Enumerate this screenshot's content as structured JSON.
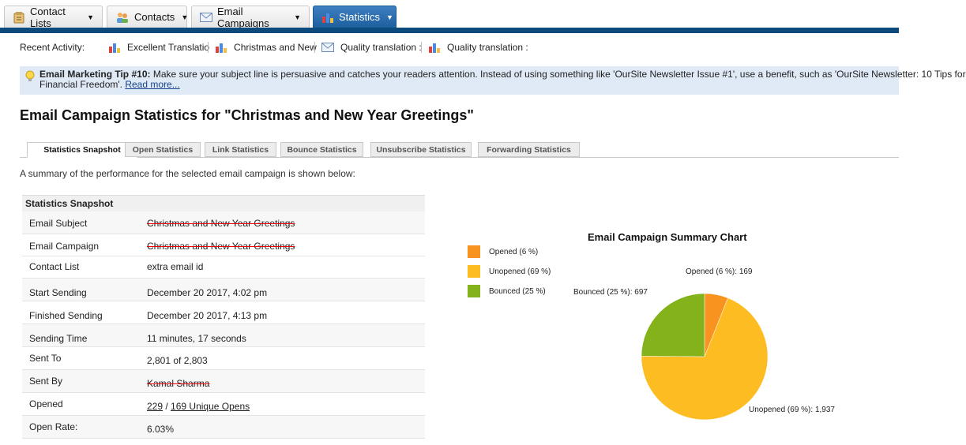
{
  "nav": {
    "tabs": [
      {
        "label": "Contact Lists",
        "icon": "contact-lists-icon"
      },
      {
        "label": "Contacts",
        "icon": "contacts-icon"
      },
      {
        "label": "Email Campaigns",
        "icon": "envelope-icon"
      },
      {
        "label": "Statistics",
        "icon": "bar-chart-icon",
        "active": true
      }
    ]
  },
  "recent": {
    "label": "Recent Activity:",
    "items": [
      {
        "text": "Excellent Translatio",
        "icon": "bar-chart-icon"
      },
      {
        "text": "Christmas and New",
        "icon": "bar-chart-icon"
      },
      {
        "text": "Quality translation :",
        "icon": "envelope-icon"
      },
      {
        "text": "Quality translation :",
        "icon": "bar-chart-icon"
      }
    ]
  },
  "tip": {
    "heading": "Email Marketing Tip #10:",
    "body": " Make sure your subject line is persuasive and catches your readers attention. Instead of using something like 'OurSite Newsletter Issue #1', use a benefit, such as 'OurSite Newsletter: 10 Tips for",
    "body2": "Financial Freedom'. ",
    "link": "Read more..."
  },
  "page_title": "Email Campaign Statistics for \"Christmas and New Year Greetings\"",
  "subtabs": [
    {
      "label": "Statistics Snapshot",
      "active": true
    },
    {
      "label": "Open Statistics"
    },
    {
      "label": "Link Statistics"
    },
    {
      "label": "Bounce Statistics"
    },
    {
      "label": "Unsubscribe Statistics"
    },
    {
      "label": "Forwarding Statistics"
    }
  ],
  "summary_text": "A summary of the performance for the selected email campaign is shown below:",
  "snapshot": {
    "header": "Statistics Snapshot",
    "rows": [
      {
        "key": "Email Subject",
        "value": "Christmas and New Year Greetings",
        "redacted": true
      },
      {
        "key": "Email Campaign",
        "value": "Christmas and New Year Greetings",
        "redacted": true
      },
      {
        "key": "Contact List",
        "value": "extra email id"
      },
      {
        "key": "Start Sending",
        "value": "December 20 2017, 4:02 pm"
      },
      {
        "key": "Finished Sending",
        "value": "December 20 2017, 4:13 pm"
      },
      {
        "key": "Sending Time",
        "value": "11 minutes, 17 seconds"
      },
      {
        "key": "Sent To",
        "value": "2,801 of 2,803"
      },
      {
        "key": "Sent By",
        "value": "Kamal Sharma",
        "redacted": true
      },
      {
        "key": "Opened",
        "value_a": "229",
        "value_sep": " / ",
        "value_b": "169 Unique Opens"
      },
      {
        "key": "Open Rate:",
        "value": "6.03%"
      }
    ]
  },
  "chart_data": {
    "type": "pie",
    "title": "Email Campaign Summary Chart",
    "legend_position": "left",
    "slices": [
      {
        "name": "Opened (6 %)",
        "label": "Opened (6 %): 169",
        "value": 169,
        "color": "#f7931e"
      },
      {
        "name": "Unopened (69 %)",
        "label": "Unopened (69 %): 1,937",
        "value": 1937,
        "color": "#fdbd22"
      },
      {
        "name": "Bounced (25 %)",
        "label": "Bounced (25 %): 697",
        "value": 697,
        "color": "#84b21a"
      }
    ]
  }
}
